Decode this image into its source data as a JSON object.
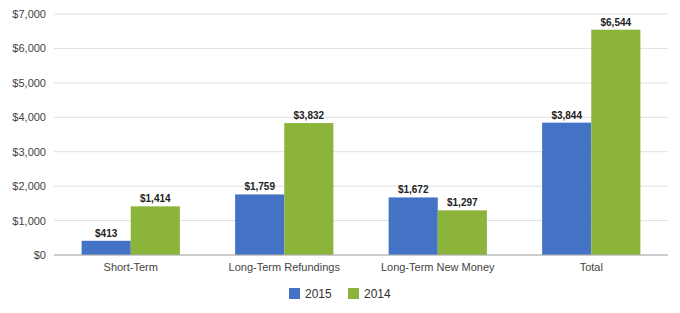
{
  "chart_data": {
    "type": "bar",
    "categories": [
      "Short-Term",
      "Long-Term Refundings",
      "Long-Term New Money",
      "Total"
    ],
    "series": [
      {
        "name": "2015",
        "color": "#4472C4",
        "values": [
          413,
          1759,
          1672,
          3844
        ],
        "value_labels": [
          "$413",
          "$1,759",
          "$1,672",
          "$3,844"
        ]
      },
      {
        "name": "2014",
        "color": "#8CB43A",
        "values": [
          1414,
          3832,
          1297,
          6544
        ],
        "value_labels": [
          "$1,414",
          "$3,832",
          "$1,297",
          "$6,544"
        ]
      }
    ],
    "ylim": [
      0,
      7000
    ],
    "yticks": [
      {
        "value": 0,
        "label": "$0"
      },
      {
        "value": 1000,
        "label": "$1,000"
      },
      {
        "value": 2000,
        "label": "$2,000"
      },
      {
        "value": 3000,
        "label": "$3,000"
      },
      {
        "value": 4000,
        "label": "$4,000"
      },
      {
        "value": 5000,
        "label": "$5,000"
      },
      {
        "value": 6000,
        "label": "$6,000"
      },
      {
        "value": 7000,
        "label": "$7,000"
      }
    ],
    "grid": true,
    "legend": "bottom",
    "data_labels": true
  }
}
